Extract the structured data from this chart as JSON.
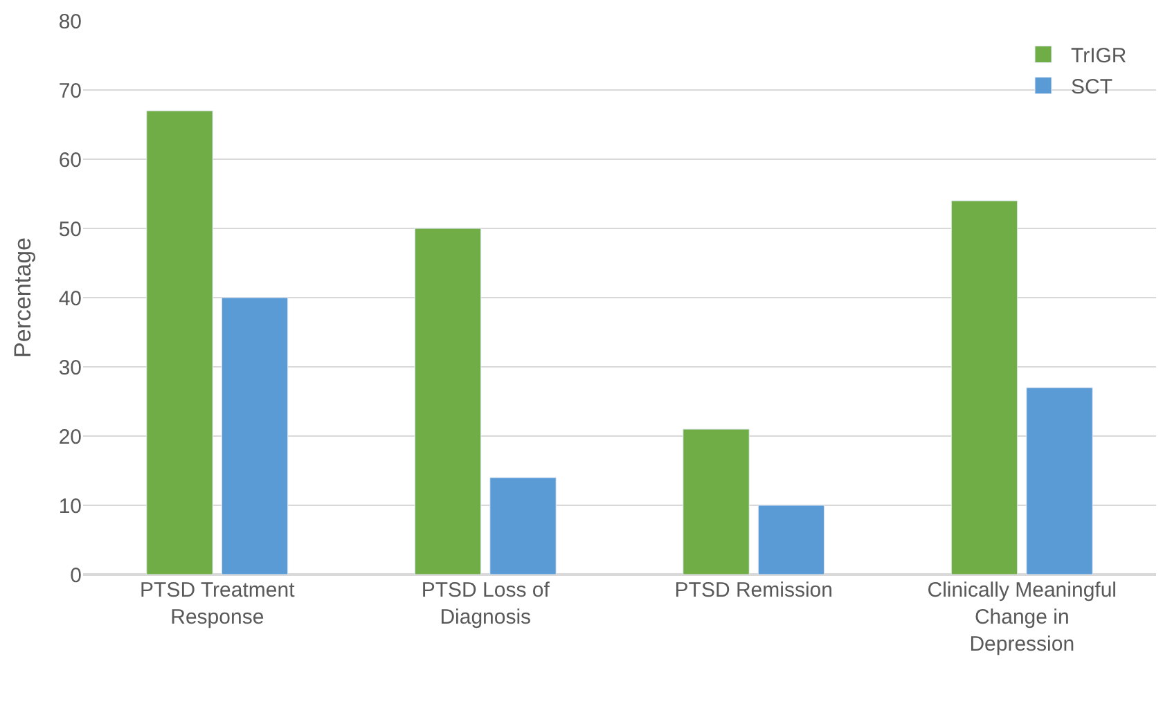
{
  "chart_data": {
    "type": "bar",
    "ylabel": "Percentage",
    "categories": [
      "PTSD Treatment\nResponse",
      "PTSD Loss of\nDiagnosis",
      "PTSD Remission",
      "Clinically Meaningful\nChange in\nDepression"
    ],
    "series": [
      {
        "name": "TrIGR",
        "color": "#70ad47",
        "values": [
          67,
          50,
          21,
          54
        ]
      },
      {
        "name": "SCT",
        "color": "#5b9bd5",
        "values": [
          40,
          14,
          10,
          27
        ]
      }
    ],
    "ylim": [
      0,
      80
    ],
    "yticks": [
      0,
      10,
      20,
      30,
      40,
      50,
      60,
      70,
      80
    ],
    "grid": "y",
    "legend": "top right"
  }
}
